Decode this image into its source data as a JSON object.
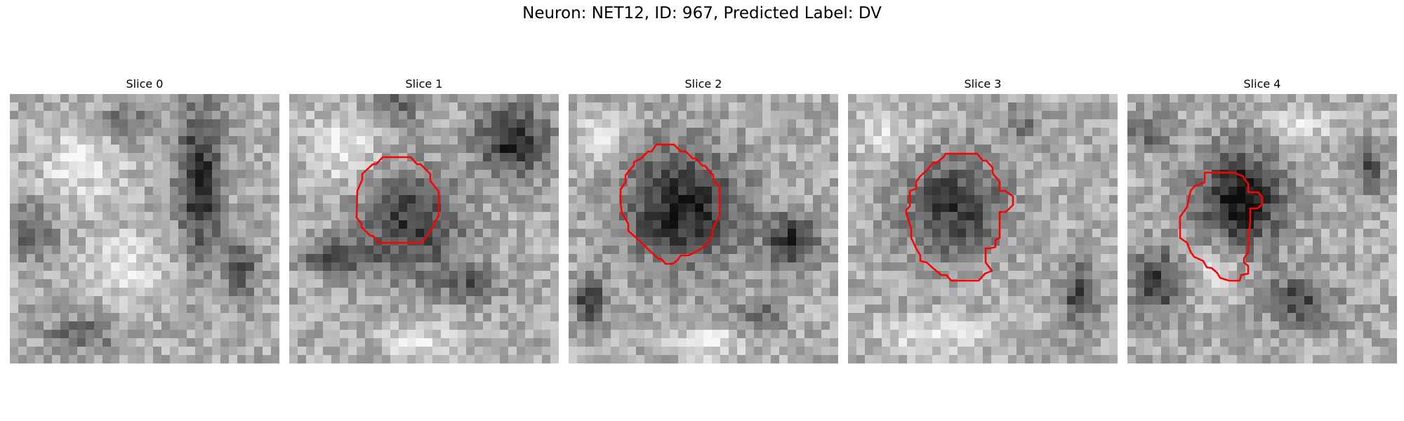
{
  "figure": {
    "title": "Neuron: NET12, ID: 967, Predicted Label: DV",
    "outline_color": "#ff0000"
  },
  "panels": [
    {
      "title": "Slice 0"
    },
    {
      "title": "Slice 1"
    },
    {
      "title": "Slice 2"
    },
    {
      "title": "Slice 3"
    },
    {
      "title": "Slice 4"
    }
  ]
}
